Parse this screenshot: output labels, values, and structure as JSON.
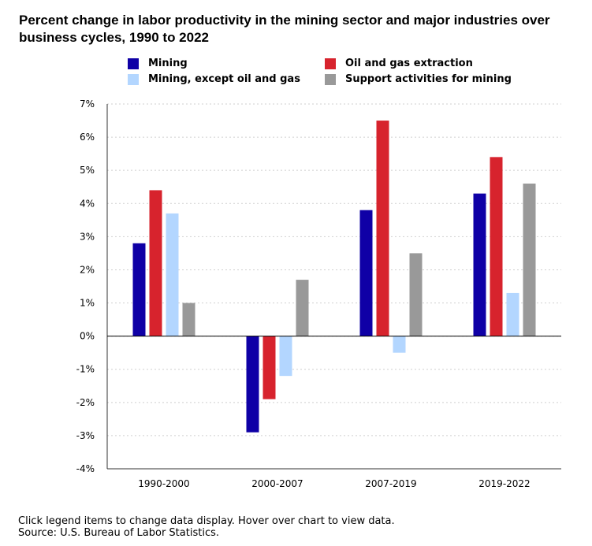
{
  "chart_data": {
    "type": "bar",
    "title": "Percent change in labor productivity in the mining sector and major industries over business cycles, 1990 to 2022",
    "categories": [
      "1990-2000",
      "2000-2007",
      "2007-2019",
      "2019-2022"
    ],
    "series": [
      {
        "name": "Mining",
        "color": "#0f00a6",
        "values": [
          2.8,
          -2.9,
          3.8,
          4.3
        ]
      },
      {
        "name": "Oil and gas extraction",
        "color": "#d7232d",
        "values": [
          4.4,
          -1.9,
          6.5,
          5.4
        ]
      },
      {
        "name": "Mining, except oil and gas",
        "color": "#b3d6ff",
        "values": [
          3.7,
          -1.2,
          -0.5,
          1.3
        ]
      },
      {
        "name": "Support activities for mining",
        "color": "#999999",
        "values": [
          1.0,
          1.7,
          2.5,
          4.6
        ]
      }
    ],
    "ylim": [
      -4,
      7
    ],
    "yticks": [
      "7%",
      "6%",
      "5%",
      "4%",
      "3%",
      "2%",
      "1%",
      "0%",
      "-1%",
      "-2%",
      "-3%",
      "-4%"
    ],
    "xlabel": "",
    "ylabel": "",
    "grid": true,
    "legend": "top"
  },
  "footer": {
    "instructions": "Click legend items to change data display. Hover over chart to view data.",
    "source": "Source: U.S. Bureau of Labor Statistics."
  }
}
